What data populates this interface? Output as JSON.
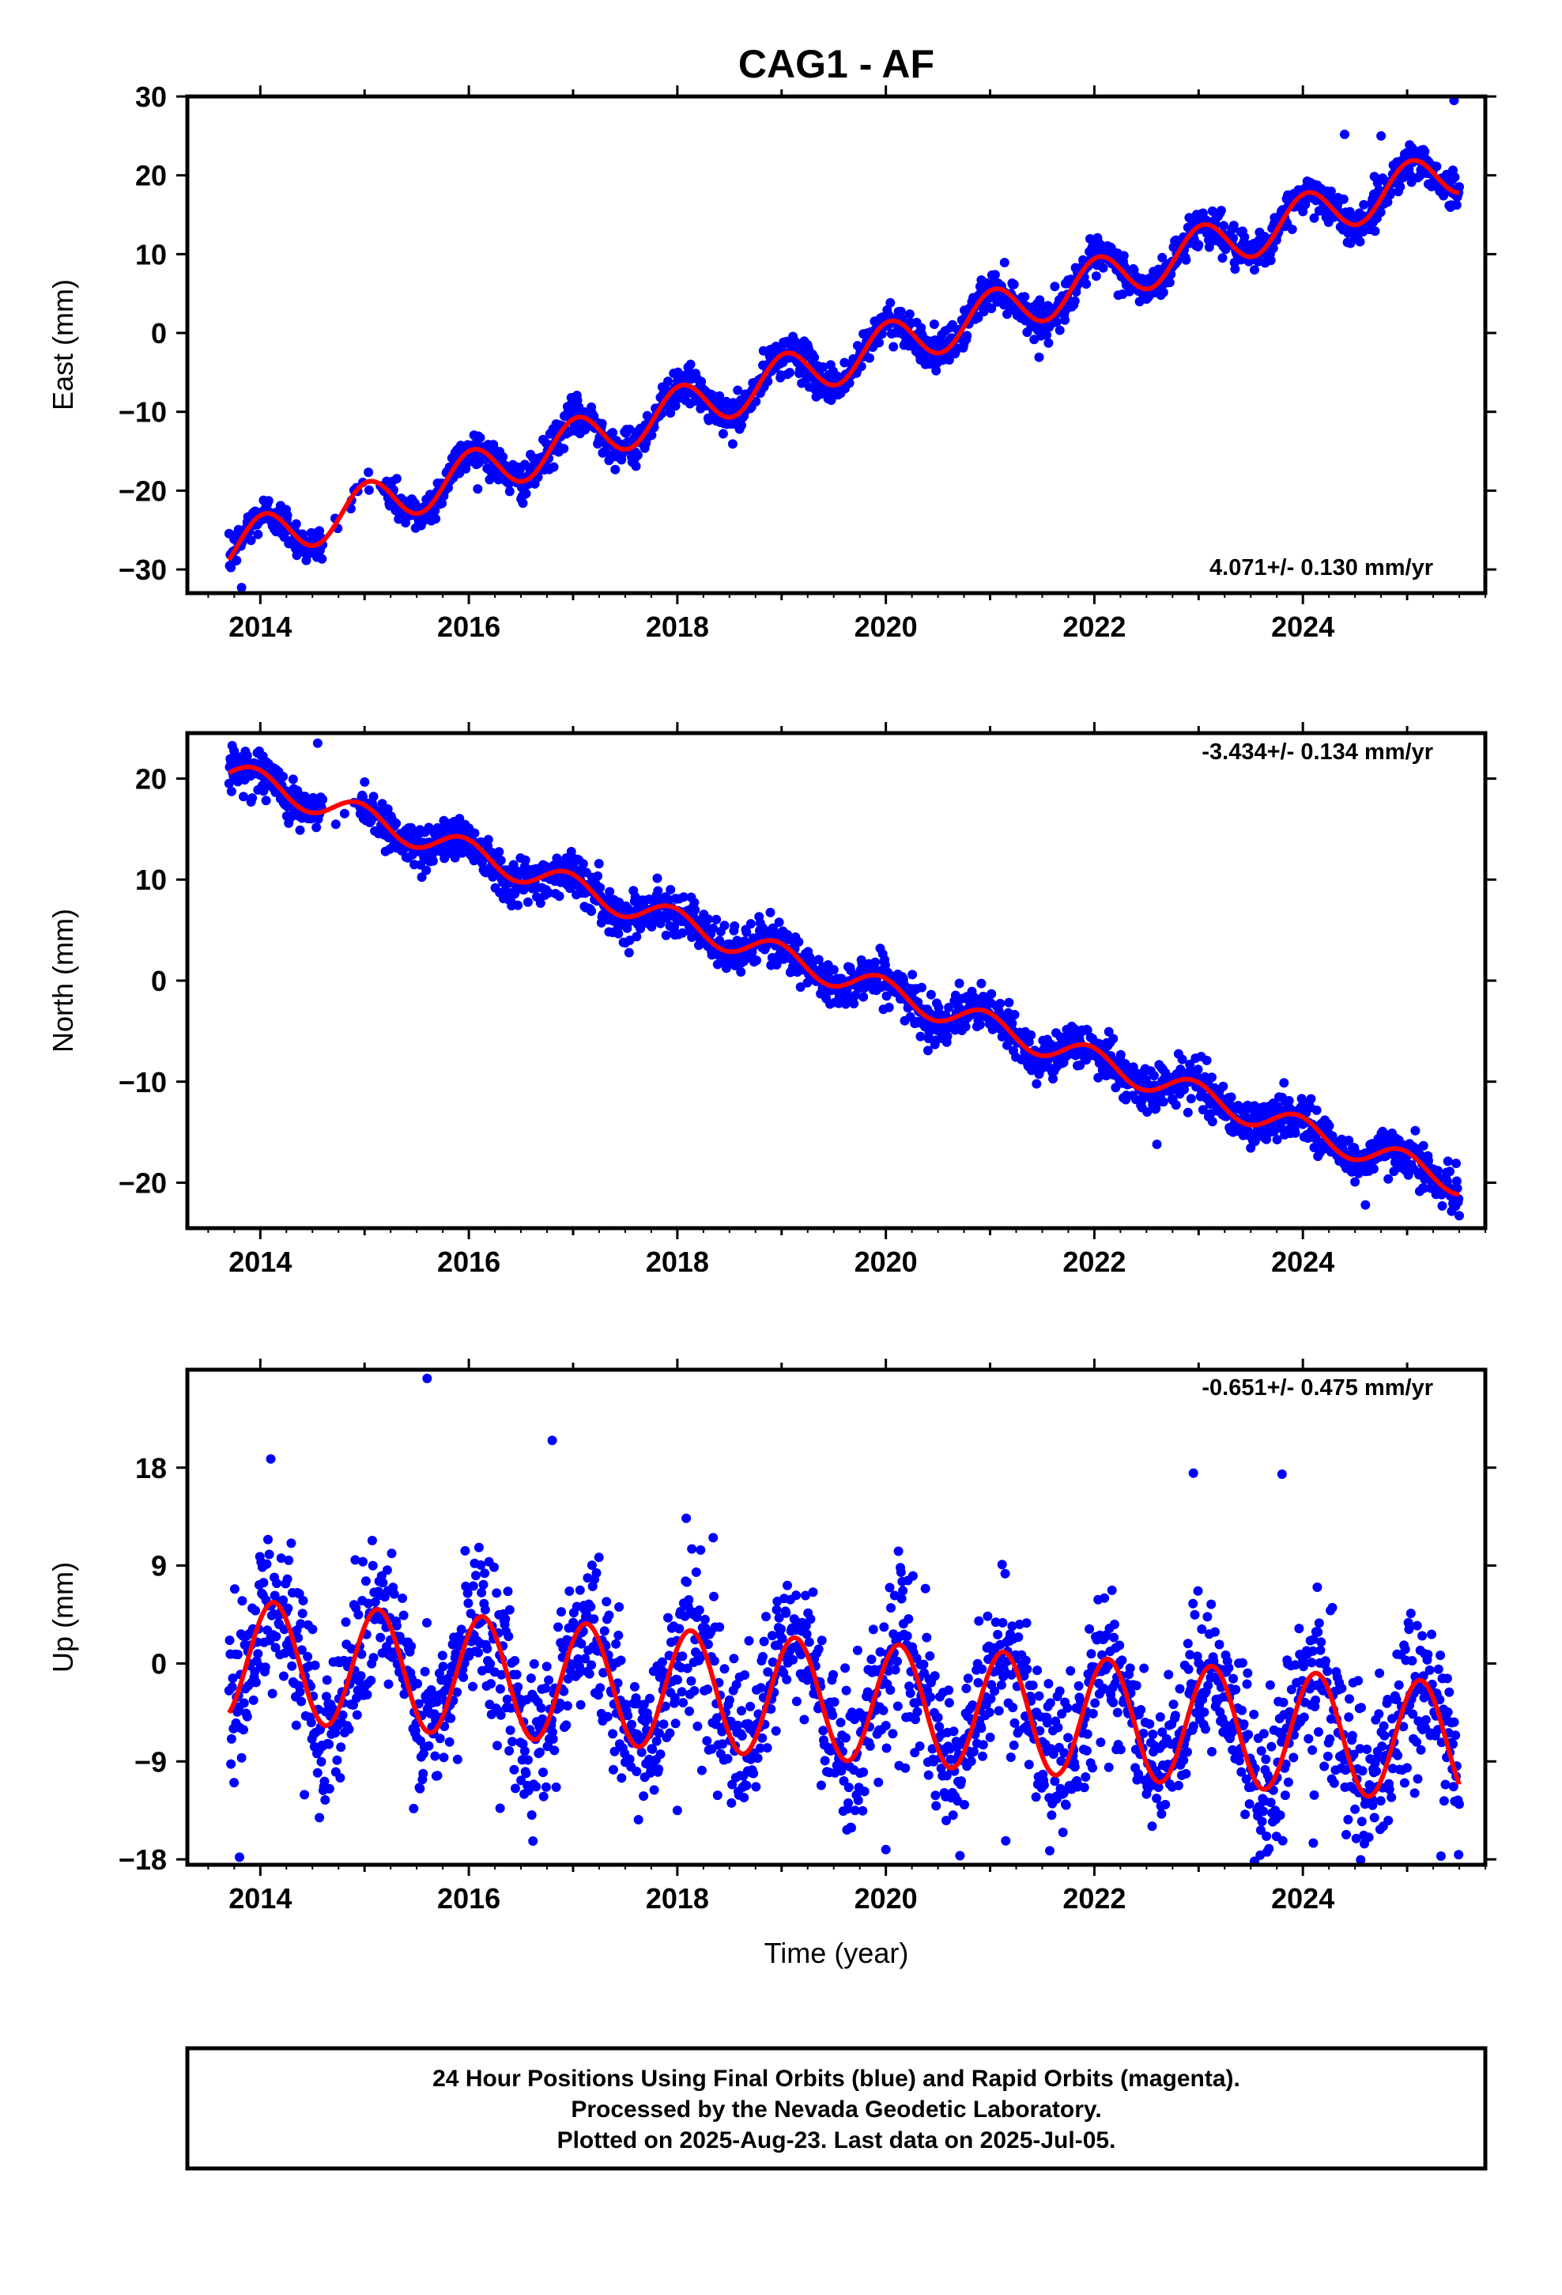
{
  "title": "CAG1 - AF",
  "xlabel": "Time (year)",
  "footer": {
    "line1": "24 Hour Positions Using Final Orbits (blue) and Rapid Orbits (magenta).",
    "line2": "Processed by the Nevada Geodetic Laboratory.",
    "line3": "Plotted on 2025-Aug-23. Last data on 2025-Jul-05."
  },
  "colors": {
    "final_orbits": "#0000ff",
    "rapid_orbits": "#ff00ff",
    "model": "#ff0000",
    "frame": "#000000"
  },
  "chart_data": [
    {
      "type": "scatter",
      "component": "East",
      "ylabel": "East (mm)",
      "rate_text": "4.071+/- 0.130 mm/yr",
      "rate": 4.071,
      "rate_sigma": 0.13,
      "xlim": [
        2013.3,
        2025.75
      ],
      "ylim": [
        -33,
        30
      ],
      "xticks": [
        2014,
        2016,
        2018,
        2020,
        2022,
        2024
      ],
      "yticks": [
        -30,
        -20,
        -10,
        0,
        10,
        20,
        30
      ],
      "ytick_labels": [
        "−30",
        "−20",
        "−10",
        "0",
        "10",
        "20",
        "30"
      ],
      "grid": false,
      "data_start": 2013.7,
      "data_end": 2025.5,
      "gap": [
        2014.6,
        2015.2
      ],
      "model_offset_2013_7": -27.3,
      "annual_amplitude": 3.0,
      "annual_phase_rad": 0.2,
      "noise_mm": 1.2,
      "outliers": [
        {
          "x": 2013.82,
          "y": -32.3
        },
        {
          "x": 2024.4,
          "y": 25.2
        },
        {
          "x": 2024.75,
          "y": 25.0
        },
        {
          "x": 2025.45,
          "y": 29.5
        }
      ],
      "series": [
        {
          "name": "Final Orbits",
          "role": "points"
        },
        {
          "name": "Model",
          "role": "fit"
        }
      ]
    },
    {
      "type": "scatter",
      "component": "North",
      "ylabel": "North (mm)",
      "rate_text": "-3.434+/- 0.134 mm/yr",
      "rate": -3.434,
      "rate_sigma": 0.134,
      "xlim": [
        2013.3,
        2025.75
      ],
      "ylim": [
        -24.5,
        24.5
      ],
      "xticks": [
        2014,
        2016,
        2018,
        2020,
        2022,
        2024
      ],
      "yticks": [
        -20,
        -10,
        0,
        10,
        20
      ],
      "ytick_labels": [
        "−20",
        "−10",
        "0",
        "10",
        "20"
      ],
      "grid": false,
      "data_start": 2013.7,
      "data_end": 2025.5,
      "gap": [
        2014.6,
        2014.95
      ],
      "model_offset_2013_7": 20.6,
      "annual_amplitude": 1.3,
      "annual_phase_rad": -0.3,
      "noise_mm": 1.1,
      "outliers": [
        {
          "x": 2014.55,
          "y": 23.5
        },
        {
          "x": 2022.6,
          "y": -16.2
        },
        {
          "x": 2024.6,
          "y": -22.2
        }
      ],
      "series": [
        {
          "name": "Final Orbits",
          "role": "points"
        },
        {
          "name": "Model",
          "role": "fit"
        }
      ]
    },
    {
      "type": "scatter",
      "component": "Up",
      "ylabel": "Up (mm)",
      "rate_text": "-0.651+/- 0.475 mm/yr",
      "rate": -0.651,
      "rate_sigma": 0.475,
      "xlim": [
        2013.3,
        2025.75
      ],
      "ylim": [
        -18.5,
        27
      ],
      "xticks": [
        2014,
        2016,
        2018,
        2020,
        2022,
        2024
      ],
      "yticks": [
        -18,
        -9,
        0,
        9,
        18
      ],
      "ytick_labels": [
        "−18",
        "−9",
        "0",
        "9",
        "18"
      ],
      "grid": false,
      "data_start": 2013.7,
      "data_end": 2025.5,
      "gap": [],
      "model_offset_2013_7": 0.4,
      "annual_amplitude": 5.5,
      "annual_phase_rad": 0.8,
      "noise_mm": 3.6,
      "outliers": [
        {
          "x": 2013.8,
          "y": -17.8
        },
        {
          "x": 2014.1,
          "y": 18.8
        },
        {
          "x": 2015.6,
          "y": 26.2
        },
        {
          "x": 2016.8,
          "y": 20.5
        },
        {
          "x": 2016.3,
          "y": -13.3
        },
        {
          "x": 2018.0,
          "y": -13.5
        },
        {
          "x": 2021.15,
          "y": -16.3
        },
        {
          "x": 2020.0,
          "y": -17.1
        },
        {
          "x": 2022.95,
          "y": 17.5
        },
        {
          "x": 2023.8,
          "y": 17.4
        },
        {
          "x": 2024.1,
          "y": -16.5
        }
      ],
      "series": [
        {
          "name": "Final Orbits",
          "role": "points"
        },
        {
          "name": "Model",
          "role": "fit"
        }
      ]
    }
  ]
}
